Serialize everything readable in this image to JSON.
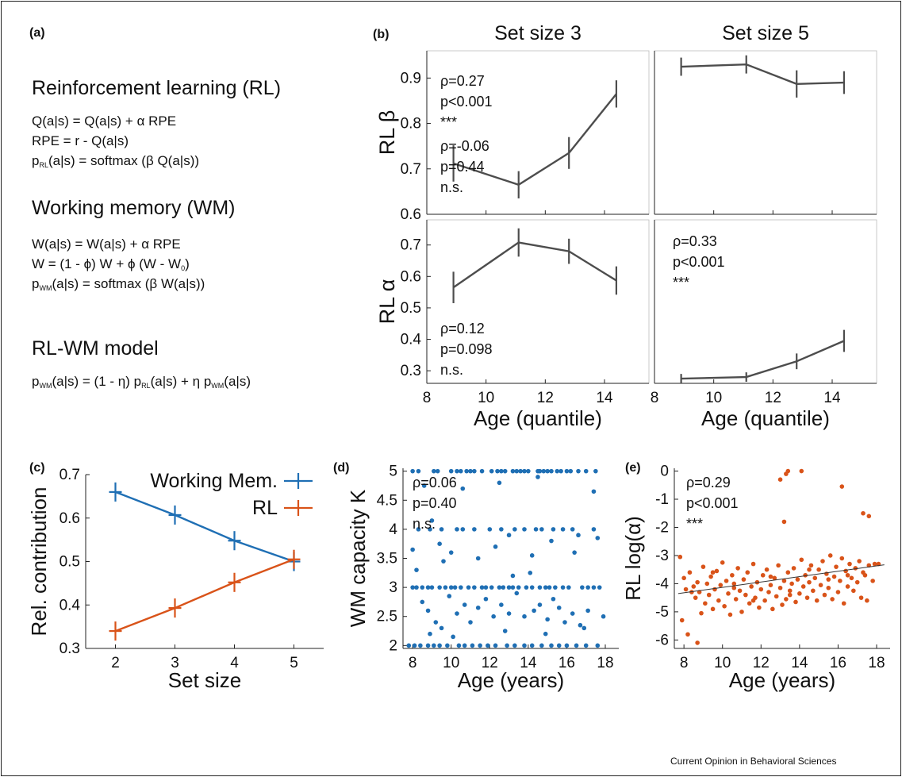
{
  "panel_a": {
    "label": "(a)",
    "rl_title": "Reinforcement learning (RL)",
    "rl_eq1": "Q(a|s) = Q(a|s) + α RPE",
    "rl_eq2": "RPE = r - Q(a|s)",
    "rl_eq3_pre": "p",
    "rl_eq3_sub": "RL",
    "rl_eq3_post": "(a|s) = softmax (β Q(a|s))",
    "wm_title": "Working memory (WM)",
    "wm_eq1": "W(a|s) = W(a|s) + α RPE",
    "wm_eq2_pre": "W = (1 - ϕ) W + ϕ (W - W",
    "wm_eq2_sub": "0",
    "wm_eq2_post": ")",
    "wm_eq3_pre": "p",
    "wm_eq3_sub": "WM",
    "wm_eq3_post": "(a|s) = softmax (β W(a|s))",
    "model_title": "RL-WM model",
    "model_p1": "p",
    "model_s1": "WM",
    "model_p2": "(a|s) = (1 - η) p",
    "model_s2": "RL",
    "model_p3": "(a|s) + η p",
    "model_s3": "WM",
    "model_p4": "(a|s)"
  },
  "credit": "Current Opinion in Behavioral Sciences",
  "colors": {
    "blue": "#1f6fb4",
    "orange": "#d95319",
    "gray": "#4d4d4d"
  },
  "chart_data": [
    {
      "id": "b",
      "label": "(b)",
      "type": "line",
      "col_titles": [
        "Set size 3",
        "Set size 5"
      ],
      "row_labels": [
        "RL β",
        "RL α"
      ],
      "xlabel": "Age (quantile)",
      "xlim": [
        8,
        15.5
      ],
      "xticks": [
        8,
        10,
        12,
        14
      ],
      "x": [
        8.9,
        11.1,
        12.8,
        14.4
      ],
      "rows": [
        {
          "ylim": [
            0.6,
            0.96
          ],
          "yticks": [
            0.6,
            0.7,
            0.8,
            0.9
          ],
          "cells": [
            {
              "y": [
                0.712,
                0.665,
                0.735,
                0.865
              ],
              "err": [
                0.04,
                0.03,
                0.035,
                0.03
              ],
              "stats": [
                "ρ=0.27",
                "p<0.001",
                "***"
              ]
            },
            {
              "y": [
                0.925,
                0.93,
                0.887,
                0.89
              ],
              "err": [
                0.02,
                0.02,
                0.03,
                0.025
              ],
              "stats": [
                "ρ=-0.06",
                "p=0.44",
                "n.s."
              ]
            }
          ]
        },
        {
          "ylim": [
            0.26,
            0.78
          ],
          "yticks": [
            0.3,
            0.4,
            0.5,
            0.6,
            0.7
          ],
          "cells": [
            {
              "y": [
                0.565,
                0.708,
                0.68,
                0.587
              ],
              "err": [
                0.05,
                0.045,
                0.04,
                0.045
              ],
              "stats": [
                "ρ=0.12",
                "p=0.098",
                "n.s."
              ]
            },
            {
              "y": [
                0.275,
                0.28,
                0.33,
                0.395
              ],
              "err": [
                0.015,
                0.015,
                0.025,
                0.035
              ],
              "stats": [
                "ρ=0.33",
                "p<0.001",
                "***"
              ]
            }
          ]
        }
      ]
    },
    {
      "id": "c",
      "label": "(c)",
      "type": "line",
      "xlabel": "Set size",
      "ylabel": "Rel. contribution",
      "xlim": [
        1.5,
        5.5
      ],
      "ylim": [
        0.3,
        0.7
      ],
      "xticks": [
        2,
        3,
        4,
        5
      ],
      "yticks": [
        0.3,
        0.4,
        0.5,
        0.6,
        0.7
      ],
      "categories": [
        2,
        3,
        4,
        5
      ],
      "series": [
        {
          "name": "Working Mem.",
          "values": [
            0.66,
            0.607,
            0.548,
            0.5
          ],
          "err": [
            0.022,
            0.022,
            0.022,
            0.022
          ]
        },
        {
          "name": "RL",
          "values": [
            0.34,
            0.393,
            0.452,
            0.505
          ],
          "err": [
            0.022,
            0.022,
            0.022,
            0.022
          ]
        }
      ]
    },
    {
      "id": "d",
      "label": "(d)",
      "type": "scatter",
      "xlabel": "Age (years)",
      "ylabel": "WM capacity K",
      "xlim": [
        7.5,
        18.7
      ],
      "ylim": [
        1.95,
        5.05
      ],
      "xticks": [
        8,
        10,
        12,
        14,
        16,
        18
      ],
      "yticks": [
        2,
        2.5,
        3,
        3.5,
        4,
        4.5,
        5
      ],
      "stats": [
        "ρ=0.06",
        "p=0.40",
        "n.s."
      ],
      "points": [
        [
          8.0,
          5
        ],
        [
          8.3,
          5
        ],
        [
          9.1,
          5
        ],
        [
          9.3,
          5
        ],
        [
          10.0,
          5
        ],
        [
          10.3,
          5
        ],
        [
          10.5,
          5
        ],
        [
          10.8,
          5
        ],
        [
          11.0,
          5
        ],
        [
          11.2,
          5
        ],
        [
          11.6,
          5
        ],
        [
          12.1,
          5
        ],
        [
          12.4,
          5
        ],
        [
          12.6,
          5
        ],
        [
          12.8,
          5
        ],
        [
          13.2,
          5
        ],
        [
          13.4,
          5
        ],
        [
          13.6,
          5
        ],
        [
          13.8,
          5
        ],
        [
          14.0,
          5
        ],
        [
          14.5,
          5
        ],
        [
          14.6,
          5
        ],
        [
          14.8,
          5
        ],
        [
          15.0,
          5
        ],
        [
          15.2,
          5
        ],
        [
          15.5,
          5
        ],
        [
          15.7,
          5
        ],
        [
          16.0,
          5
        ],
        [
          16.2,
          5
        ],
        [
          16.6,
          5
        ],
        [
          17.0,
          5
        ],
        [
          17.5,
          5
        ],
        [
          9.0,
          4.15
        ],
        [
          8.6,
          4.75
        ],
        [
          10.6,
          4.7
        ],
        [
          12.5,
          4.8
        ],
        [
          14.5,
          4.9
        ],
        [
          17.4,
          4.65
        ],
        [
          8.3,
          4
        ],
        [
          8.9,
          4
        ],
        [
          9.5,
          4
        ],
        [
          10.3,
          4
        ],
        [
          10.6,
          4
        ],
        [
          11.2,
          4
        ],
        [
          12.0,
          4
        ],
        [
          12.6,
          4
        ],
        [
          13.3,
          4
        ],
        [
          13.8,
          4
        ],
        [
          14.4,
          4
        ],
        [
          14.7,
          4
        ],
        [
          15.3,
          4
        ],
        [
          15.8,
          4
        ],
        [
          16.3,
          4
        ],
        [
          17.4,
          4
        ],
        [
          8.0,
          3.65
        ],
        [
          9.4,
          3.75
        ],
        [
          10.0,
          3.6
        ],
        [
          11.4,
          3.5
        ],
        [
          12.3,
          3.7
        ],
        [
          13.0,
          3.9
        ],
        [
          14.2,
          3.55
        ],
        [
          15.2,
          3.8
        ],
        [
          16.4,
          3.6
        ],
        [
          17.6,
          3.85
        ],
        [
          9.6,
          3.45
        ],
        [
          16.6,
          3.9
        ],
        [
          8.2,
          3.3
        ],
        [
          13.2,
          3.2
        ],
        [
          14.1,
          3.25
        ],
        [
          8.0,
          3
        ],
        [
          8.2,
          3
        ],
        [
          8.5,
          3
        ],
        [
          8.8,
          3
        ],
        [
          9.0,
          3
        ],
        [
          9.4,
          3
        ],
        [
          9.7,
          3
        ],
        [
          10.0,
          3
        ],
        [
          10.2,
          3
        ],
        [
          10.5,
          3
        ],
        [
          10.9,
          3
        ],
        [
          11.2,
          3
        ],
        [
          11.6,
          3
        ],
        [
          11.8,
          3
        ],
        [
          12.1,
          3
        ],
        [
          12.5,
          3
        ],
        [
          12.7,
          3
        ],
        [
          13.0,
          3
        ],
        [
          13.2,
          3
        ],
        [
          13.5,
          3
        ],
        [
          13.9,
          3
        ],
        [
          14.2,
          3
        ],
        [
          14.6,
          3
        ],
        [
          14.9,
          3
        ],
        [
          15.1,
          3
        ],
        [
          15.4,
          3
        ],
        [
          15.8,
          3
        ],
        [
          16.1,
          3
        ],
        [
          16.8,
          3
        ],
        [
          17.1,
          3
        ],
        [
          17.4,
          3
        ],
        [
          17.7,
          3
        ],
        [
          8.5,
          2.75
        ],
        [
          8.8,
          2.6
        ],
        [
          9.2,
          2.4
        ],
        [
          9.5,
          2.3
        ],
        [
          9.9,
          2.85
        ],
        [
          10.3,
          2.55
        ],
        [
          10.7,
          2.7
        ],
        [
          11.0,
          2.4
        ],
        [
          11.4,
          2.65
        ],
        [
          11.8,
          2.8
        ],
        [
          12.2,
          2.5
        ],
        [
          12.6,
          2.7
        ],
        [
          13.0,
          2.55
        ],
        [
          13.4,
          2.9
        ],
        [
          13.8,
          2.5
        ],
        [
          14.3,
          2.6
        ],
        [
          14.6,
          2.7
        ],
        [
          15.0,
          2.45
        ],
        [
          15.3,
          2.8
        ],
        [
          15.6,
          2.65
        ],
        [
          15.9,
          2.4
        ],
        [
          16.3,
          2.55
        ],
        [
          16.7,
          2.35
        ],
        [
          17.1,
          2.6
        ],
        [
          17.9,
          2.5
        ],
        [
          8.9,
          2.2
        ],
        [
          10.1,
          2.15
        ],
        [
          12.8,
          2.25
        ],
        [
          14.9,
          2.2
        ],
        [
          16.9,
          2.3
        ],
        [
          7.8,
          2
        ],
        [
          8.1,
          2
        ],
        [
          8.4,
          2
        ],
        [
          8.8,
          2
        ],
        [
          9.1,
          2
        ],
        [
          9.4,
          2
        ],
        [
          9.8,
          2
        ],
        [
          10.4,
          2
        ],
        [
          10.7,
          2
        ],
        [
          11.1,
          2
        ],
        [
          11.5,
          2
        ],
        [
          11.9,
          2
        ],
        [
          12.3,
          2
        ],
        [
          12.9,
          2
        ],
        [
          13.3,
          2
        ],
        [
          13.8,
          2
        ],
        [
          14.2,
          2
        ],
        [
          14.7,
          2
        ],
        [
          15.2,
          2
        ],
        [
          15.6,
          2
        ],
        [
          16.0,
          2
        ],
        [
          16.5,
          2
        ],
        [
          17.0,
          2
        ],
        [
          17.6,
          2
        ]
      ]
    },
    {
      "id": "e",
      "label": "(e)",
      "type": "scatter",
      "xlabel": "Age (years)",
      "ylabel": "RL log(α)",
      "xlim": [
        7.5,
        18.7
      ],
      "ylim": [
        -6.3,
        0.1
      ],
      "xticks": [
        8,
        10,
        12,
        14,
        16,
        18
      ],
      "yticks": [
        -6,
        -5,
        -4,
        -3,
        -2,
        -1,
        0
      ],
      "stats": [
        "ρ=0.29",
        "p<0.001",
        "***"
      ],
      "fit": {
        "x": [
          7.7,
          18.4
        ],
        "y": [
          -4.35,
          -3.33
        ]
      },
      "points": [
        [
          7.8,
          -3.05
        ],
        [
          7.9,
          -5.3
        ],
        [
          8.2,
          -5.8
        ],
        [
          8.7,
          -6.1
        ],
        [
          8.9,
          -5.05
        ],
        [
          8.0,
          -3.8
        ],
        [
          8.1,
          -4.2
        ],
        [
          8.3,
          -3.6
        ],
        [
          8.5,
          -4.1
        ],
        [
          8.6,
          -4.5
        ],
        [
          8.7,
          -3.95
        ],
        [
          8.8,
          -4.3
        ],
        [
          9.0,
          -3.4
        ],
        [
          9.1,
          -4.7
        ],
        [
          9.2,
          -4.0
        ],
        [
          9.3,
          -4.4
        ],
        [
          9.4,
          -3.75
        ],
        [
          9.5,
          -4.9
        ],
        [
          9.6,
          -4.2
        ],
        [
          9.7,
          -3.55
        ],
        [
          9.8,
          -4.6
        ],
        [
          9.9,
          -4.05
        ],
        [
          10.0,
          -3.25
        ],
        [
          10.1,
          -4.8
        ],
        [
          10.2,
          -3.9
        ],
        [
          10.3,
          -4.35
        ],
        [
          10.4,
          -5.1
        ],
        [
          10.5,
          -3.7
        ],
        [
          10.6,
          -4.15
        ],
        [
          10.7,
          -4.55
        ],
        [
          10.8,
          -3.45
        ],
        [
          10.9,
          -4.25
        ],
        [
          11.0,
          -5.0
        ],
        [
          11.1,
          -3.85
        ],
        [
          11.2,
          -4.4
        ],
        [
          11.3,
          -3.6
        ],
        [
          11.4,
          -4.7
        ],
        [
          11.5,
          -4.1
        ],
        [
          11.6,
          -3.3
        ],
        [
          11.7,
          -4.5
        ],
        [
          11.8,
          -3.95
        ],
        [
          11.9,
          -4.85
        ],
        [
          12.0,
          -4.2
        ],
        [
          12.1,
          -3.7
        ],
        [
          12.2,
          -4.6
        ],
        [
          12.3,
          -3.5
        ],
        [
          12.4,
          -4.3
        ],
        [
          12.5,
          -4.05
        ],
        [
          12.6,
          -4.9
        ],
        [
          12.7,
          -3.8
        ],
        [
          12.8,
          -4.45
        ],
        [
          12.9,
          -3.35
        ],
        [
          13.0,
          -4.15
        ],
        [
          13.1,
          -4.75
        ],
        [
          13.2,
          -3.9
        ],
        [
          13.3,
          -4.55
        ],
        [
          13.4,
          -3.6
        ],
        [
          13.5,
          -4.25
        ],
        [
          13.6,
          -4.0
        ],
        [
          13.7,
          -3.45
        ],
        [
          13.8,
          -4.65
        ],
        [
          13.9,
          -3.85
        ],
        [
          14.0,
          -4.35
        ],
        [
          14.1,
          -3.15
        ],
        [
          14.2,
          -4.1
        ],
        [
          14.3,
          -3.7
        ],
        [
          14.4,
          -4.5
        ],
        [
          14.5,
          -3.95
        ],
        [
          14.6,
          -3.35
        ],
        [
          14.7,
          -4.25
        ],
        [
          14.8,
          -3.8
        ],
        [
          14.9,
          -4.6
        ],
        [
          15.0,
          -3.5
        ],
        [
          15.1,
          -4.05
        ],
        [
          15.2,
          -3.2
        ],
        [
          15.3,
          -4.4
        ],
        [
          15.4,
          -3.65
        ],
        [
          15.5,
          -4.15
        ],
        [
          15.6,
          -3.0
        ],
        [
          15.7,
          -4.55
        ],
        [
          15.8,
          -3.75
        ],
        [
          15.9,
          -3.4
        ],
        [
          16.0,
          -4.3
        ],
        [
          16.1,
          -3.9
        ],
        [
          16.2,
          -3.1
        ],
        [
          16.3,
          -4.7
        ],
        [
          16.4,
          -3.55
        ],
        [
          16.5,
          -4.1
        ],
        [
          16.6,
          -3.3
        ],
        [
          16.7,
          -3.8
        ],
        [
          16.8,
          -4.25
        ],
        [
          16.9,
          -3.45
        ],
        [
          17.0,
          -3.95
        ],
        [
          17.1,
          -3.2
        ],
        [
          17.2,
          -4.5
        ],
        [
          17.3,
          -3.6
        ],
        [
          17.5,
          -4.6
        ],
        [
          17.6,
          -3.35
        ],
        [
          17.8,
          -3.9
        ],
        [
          17.9,
          -3.3
        ],
        [
          18.1,
          -3.3
        ],
        [
          13.0,
          -0.3
        ],
        [
          13.3,
          -0.1
        ],
        [
          13.4,
          0.0
        ],
        [
          14.1,
          0.0
        ],
        [
          13.2,
          -1.8
        ],
        [
          16.2,
          -0.55
        ],
        [
          17.3,
          -1.5
        ],
        [
          17.6,
          -1.6
        ],
        [
          8.4,
          -4.3
        ],
        [
          9.5,
          -3.6
        ],
        [
          10.6,
          -4.0
        ],
        [
          11.6,
          -4.6
        ],
        [
          12.5,
          -3.75
        ],
        [
          13.5,
          -4.4
        ],
        [
          14.5,
          -3.5
        ],
        [
          15.5,
          -3.85
        ],
        [
          16.5,
          -3.7
        ],
        [
          17.4,
          -3.7
        ]
      ]
    }
  ]
}
